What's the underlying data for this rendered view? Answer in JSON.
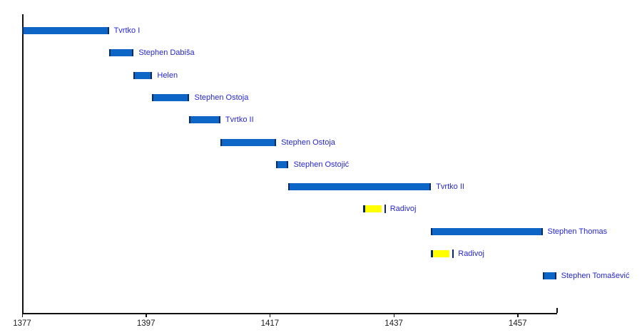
{
  "chart_data": {
    "type": "bar",
    "subtype": "horizontal-gantt-timeline",
    "title": "",
    "x_axis": {
      "tick_labels": [
        "1377",
        "1397",
        "1417",
        "1437",
        "1457"
      ],
      "tick_years": [
        1377,
        1397,
        1417,
        1437,
        1457
      ],
      "range": [
        1377,
        1463.4
      ],
      "grid": false
    },
    "bars": [
      {
        "label": "Tvrtko I",
        "start": 1377,
        "end": 1391,
        "color": "blue"
      },
      {
        "label": "Stephen Dabiša",
        "start": 1391,
        "end": 1395,
        "color": "blue"
      },
      {
        "label": "Helen",
        "start": 1395,
        "end": 1398,
        "color": "blue"
      },
      {
        "label": "Stephen Ostoja",
        "start": 1398,
        "end": 1404,
        "color": "blue"
      },
      {
        "label": "Tvrtko II",
        "start": 1404,
        "end": 1409,
        "color": "blue"
      },
      {
        "label": "Stephen Ostoja",
        "start": 1409,
        "end": 1418,
        "color": "blue"
      },
      {
        "label": "Stephen Ostojić",
        "start": 1418,
        "end": 1420,
        "color": "blue"
      },
      {
        "label": "Tvrtko II",
        "start": 1420,
        "end": 1443,
        "color": "blue"
      },
      {
        "label": "Radivoj",
        "start": 1432,
        "end": 1435,
        "color": "yellow"
      },
      {
        "label": "Stephen Thomas",
        "start": 1443,
        "end": 1461,
        "color": "blue"
      },
      {
        "label": "Radivoj",
        "start": 1443,
        "end": 1446,
        "color": "yellow"
      },
      {
        "label": "Stephen Tomašević",
        "start": 1461,
        "end": 1463.2,
        "color": "blue"
      }
    ],
    "colors": {
      "blue_fill": "#0D66C6",
      "yellow_fill": "#FFFF00",
      "bar_edge": "#0A2A66",
      "label_text": "#2626CE",
      "axis_line": "#111111",
      "tick_text": "#1A1A1A"
    },
    "legend": null
  }
}
